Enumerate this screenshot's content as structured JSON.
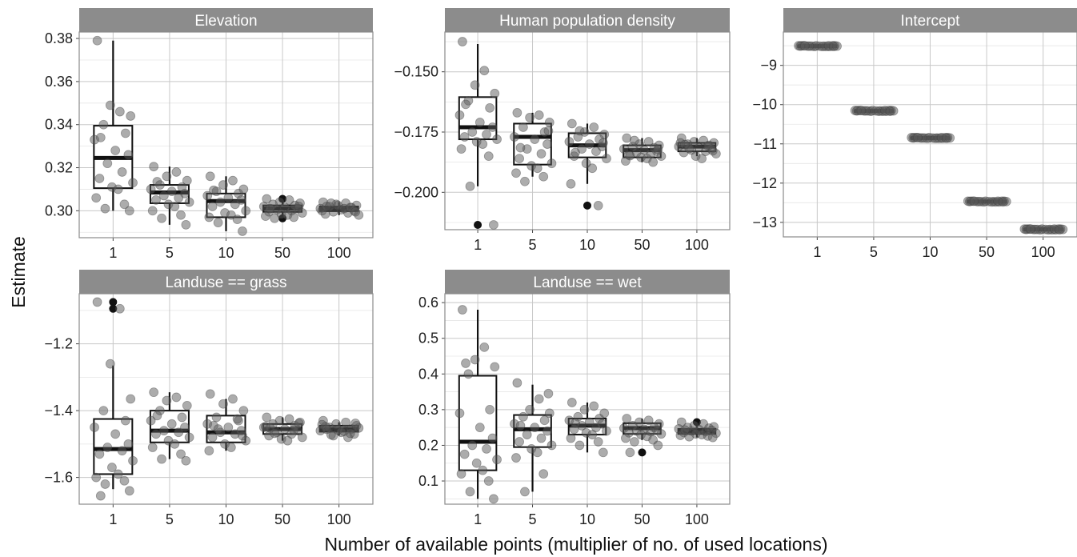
{
  "chart_data": {
    "type": "boxplot",
    "xlabel": "Number of available points (multiplier of no. of used locations)",
    "ylabel": "Estimate",
    "categories": [
      "1",
      "5",
      "10",
      "50",
      "100"
    ],
    "panels": [
      {
        "title": "Elevation",
        "ylim": [
          0.2875,
          0.383
        ],
        "yticks": [
          0.3,
          0.32,
          0.34,
          0.36,
          0.38
        ],
        "tick_labels": [
          "0.30",
          "0.32",
          "0.34",
          "0.36",
          "0.38"
        ],
        "boxes": [
          {
            "q1": 0.3105,
            "median": 0.3245,
            "q3": 0.3395,
            "low": 0.3,
            "high": 0.379,
            "outliers": []
          },
          {
            "q1": 0.3035,
            "median": 0.3085,
            "q3": 0.312,
            "low": 0.2935,
            "high": 0.3205,
            "outliers": []
          },
          {
            "q1": 0.297,
            "median": 0.3045,
            "q3": 0.308,
            "low": 0.2905,
            "high": 0.316,
            "outliers": []
          },
          {
            "q1": 0.2995,
            "median": 0.301,
            "q3": 0.3025,
            "low": 0.297,
            "high": 0.304,
            "outliers": [
              0.3055,
              0.2965
            ]
          },
          {
            "q1": 0.2998,
            "median": 0.301,
            "q3": 0.302,
            "low": 0.298,
            "high": 0.304,
            "outliers": []
          }
        ],
        "points": [
          [
            0.379,
            0.346,
            0.349,
            0.344,
            0.34,
            0.336,
            0.333,
            0.328,
            0.326,
            0.322,
            0.318,
            0.315,
            0.313,
            0.311,
            0.31,
            0.306,
            0.303,
            0.301,
            0.3,
            0.334
          ],
          [
            0.3205,
            0.318,
            0.316,
            0.314,
            0.312,
            0.311,
            0.31,
            0.309,
            0.308,
            0.307,
            0.306,
            0.305,
            0.304,
            0.303,
            0.302,
            0.3,
            0.298,
            0.2965,
            0.2935,
            0.3135
          ],
          [
            0.316,
            0.314,
            0.312,
            0.31,
            0.309,
            0.308,
            0.307,
            0.306,
            0.305,
            0.304,
            0.303,
            0.302,
            0.3,
            0.299,
            0.298,
            0.297,
            0.296,
            0.2945,
            0.2905,
            0.3095
          ],
          [
            0.3055,
            0.305,
            0.304,
            0.3035,
            0.303,
            0.3025,
            0.302,
            0.3015,
            0.301,
            0.3005,
            0.3,
            0.2995,
            0.299,
            0.2985,
            0.298,
            0.2975,
            0.297,
            0.2965,
            0.302,
            0.301
          ],
          [
            0.304,
            0.3035,
            0.303,
            0.3025,
            0.302,
            0.3015,
            0.301,
            0.3005,
            0.3,
            0.2995,
            0.299,
            0.2985,
            0.298,
            0.3025,
            0.301,
            0.3,
            0.3015,
            0.3035,
            0.2995,
            0.302
          ]
        ]
      },
      {
        "title": "Human population density",
        "ylim": [
          -0.2155,
          -0.1335
        ],
        "yticks": [
          -0.2,
          -0.175,
          -0.15
        ],
        "tick_labels": [
          "−0.200",
          "−0.175",
          "−0.150"
        ],
        "boxes": [
          {
            "q1": -0.178,
            "median": -0.173,
            "q3": -0.1605,
            "low": -0.1975,
            "high": -0.1385,
            "outliers": [
              -0.2135
            ]
          },
          {
            "q1": -0.1885,
            "median": -0.177,
            "q3": -0.1715,
            "low": -0.1935,
            "high": -0.167,
            "outliers": []
          },
          {
            "q1": -0.1855,
            "median": -0.1805,
            "q3": -0.1755,
            "low": -0.1965,
            "high": -0.1715,
            "outliers": [
              -0.2055
            ]
          },
          {
            "q1": -0.1855,
            "median": -0.1825,
            "q3": -0.1805,
            "low": -0.1875,
            "high": -0.1775,
            "outliers": []
          },
          {
            "q1": -0.183,
            "median": -0.181,
            "q3": -0.1795,
            "low": -0.185,
            "high": -0.1775,
            "outliers": []
          }
        ],
        "points": [
          [
            -0.1375,
            -0.1495,
            -0.1555,
            -0.159,
            -0.162,
            -0.165,
            -0.168,
            -0.171,
            -0.173,
            -0.175,
            -0.176,
            -0.177,
            -0.178,
            -0.179,
            -0.18,
            -0.182,
            -0.185,
            -0.1975,
            -0.2135,
            -0.1635
          ],
          [
            -0.167,
            -0.168,
            -0.169,
            -0.171,
            -0.173,
            -0.175,
            -0.177,
            -0.178,
            -0.18,
            -0.182,
            -0.184,
            -0.186,
            -0.188,
            -0.189,
            -0.19,
            -0.192,
            -0.1935,
            -0.1955,
            -0.1745,
            -0.1815
          ],
          [
            -0.1715,
            -0.173,
            -0.175,
            -0.176,
            -0.177,
            -0.178,
            -0.179,
            -0.18,
            -0.181,
            -0.182,
            -0.183,
            -0.185,
            -0.186,
            -0.188,
            -0.19,
            -0.1965,
            -0.2055,
            -0.1745,
            -0.1795,
            -0.1835
          ],
          [
            -0.1775,
            -0.179,
            -0.18,
            -0.1805,
            -0.181,
            -0.1815,
            -0.182,
            -0.1825,
            -0.183,
            -0.1835,
            -0.184,
            -0.1845,
            -0.185,
            -0.1855,
            -0.186,
            -0.187,
            -0.1875,
            -0.1785,
            -0.1822,
            -0.1848
          ],
          [
            -0.1775,
            -0.1785,
            -0.179,
            -0.1795,
            -0.18,
            -0.1805,
            -0.181,
            -0.1815,
            -0.182,
            -0.1825,
            -0.183,
            -0.1835,
            -0.184,
            -0.185,
            -0.186,
            -0.1795,
            -0.1808,
            -0.1818,
            -0.1828,
            -0.1802
          ]
        ]
      },
      {
        "title": "Intercept",
        "ylim": [
          -13.37,
          -8.15
        ],
        "yticks": [
          -13,
          -12,
          -11,
          -10,
          -9
        ],
        "tick_labels": [
          "−13",
          "−12",
          "−11",
          "−10",
          "−9"
        ],
        "boxes": [
          {
            "q1": -8.525,
            "median": -8.51,
            "q3": -8.495,
            "low": -8.54,
            "high": -8.48,
            "outliers": []
          },
          {
            "q1": -10.175,
            "median": -10.16,
            "q3": -10.145,
            "low": -10.19,
            "high": -10.13,
            "outliers": []
          },
          {
            "q1": -10.865,
            "median": -10.85,
            "q3": -10.835,
            "low": -10.88,
            "high": -10.82,
            "outliers": []
          },
          {
            "q1": -12.485,
            "median": -12.47,
            "q3": -12.455,
            "low": -12.5,
            "high": -12.44,
            "outliers": []
          },
          {
            "q1": -13.195,
            "median": -13.18,
            "q3": -13.165,
            "low": -13.21,
            "high": -13.15,
            "outliers": []
          }
        ],
        "points": [
          [
            -8.5,
            -8.51,
            -8.52,
            -8.5,
            -8.51,
            -8.52,
            -8.5,
            -8.51,
            -8.5,
            -8.51,
            -8.52,
            -8.5,
            -8.51,
            -8.5,
            -8.52,
            -8.51,
            -8.5,
            -8.51,
            -8.52,
            -8.5
          ],
          [
            -10.15,
            -10.16,
            -10.17,
            -10.15,
            -10.16,
            -10.17,
            -10.15,
            -10.16,
            -10.15,
            -10.16,
            -10.17,
            -10.15,
            -10.16,
            -10.15,
            -10.17,
            -10.16,
            -10.15,
            -10.16,
            -10.17,
            -10.15
          ],
          [
            -10.84,
            -10.85,
            -10.86,
            -10.84,
            -10.85,
            -10.86,
            -10.84,
            -10.85,
            -10.84,
            -10.85,
            -10.86,
            -10.84,
            -10.85,
            -10.84,
            -10.86,
            -10.85,
            -10.84,
            -10.85,
            -10.86,
            -10.84
          ],
          [
            -12.46,
            -12.47,
            -12.48,
            -12.46,
            -12.47,
            -12.48,
            -12.46,
            -12.47,
            -12.46,
            -12.47,
            -12.48,
            -12.46,
            -12.47,
            -12.46,
            -12.48,
            -12.47,
            -12.46,
            -12.47,
            -12.48,
            -12.46
          ],
          [
            -13.17,
            -13.18,
            -13.19,
            -13.17,
            -13.18,
            -13.19,
            -13.17,
            -13.18,
            -13.17,
            -13.18,
            -13.19,
            -13.17,
            -13.18,
            -13.17,
            -13.19,
            -13.18,
            -13.17,
            -13.18,
            -13.19,
            -13.17
          ]
        ]
      },
      {
        "title": "Landuse == grass",
        "ylim": [
          -1.68,
          -1.05
        ],
        "yticks": [
          -1.6,
          -1.4,
          -1.2
        ],
        "tick_labels": [
          "−1.6",
          "−1.4",
          "−1.2"
        ],
        "boxes": [
          {
            "q1": -1.59,
            "median": -1.515,
            "q3": -1.425,
            "low": -1.635,
            "high": -1.265,
            "outliers": [
              -1.075,
              -1.095
            ]
          },
          {
            "q1": -1.495,
            "median": -1.46,
            "q3": -1.4,
            "low": -1.545,
            "high": -1.345,
            "outliers": []
          },
          {
            "q1": -1.495,
            "median": -1.465,
            "q3": -1.415,
            "low": -1.52,
            "high": -1.365,
            "outliers": []
          },
          {
            "q1": -1.47,
            "median": -1.455,
            "q3": -1.44,
            "low": -1.49,
            "high": -1.42,
            "outliers": []
          },
          {
            "q1": -1.463,
            "median": -1.455,
            "q3": -1.445,
            "low": -1.475,
            "high": -1.435,
            "outliers": []
          }
        ],
        "points": [
          [
            -1.075,
            -1.095,
            -1.26,
            -1.365,
            -1.4,
            -1.43,
            -1.45,
            -1.47,
            -1.5,
            -1.51,
            -1.52,
            -1.53,
            -1.55,
            -1.57,
            -1.59,
            -1.6,
            -1.61,
            -1.62,
            -1.64,
            -1.655
          ],
          [
            -1.345,
            -1.36,
            -1.37,
            -1.385,
            -1.4,
            -1.42,
            -1.43,
            -1.44,
            -1.45,
            -1.46,
            -1.465,
            -1.47,
            -1.48,
            -1.49,
            -1.5,
            -1.51,
            -1.53,
            -1.545,
            -1.55,
            -1.415
          ],
          [
            -1.35,
            -1.365,
            -1.38,
            -1.4,
            -1.42,
            -1.43,
            -1.44,
            -1.45,
            -1.46,
            -1.465,
            -1.47,
            -1.48,
            -1.49,
            -1.5,
            -1.51,
            -1.52,
            -1.425,
            -1.455,
            -1.475,
            -1.445
          ],
          [
            -1.42,
            -1.425,
            -1.43,
            -1.435,
            -1.44,
            -1.445,
            -1.45,
            -1.455,
            -1.46,
            -1.465,
            -1.47,
            -1.475,
            -1.48,
            -1.485,
            -1.49,
            -1.448,
            -1.458,
            -1.468,
            -1.438,
            -1.452
          ],
          [
            -1.43,
            -1.435,
            -1.44,
            -1.445,
            -1.45,
            -1.455,
            -1.46,
            -1.465,
            -1.47,
            -1.475,
            -1.48,
            -1.448,
            -1.452,
            -1.458,
            -1.462,
            -1.442,
            -1.468,
            -1.472,
            -1.438,
            -1.456
          ]
        ]
      },
      {
        "title": "Landuse == wet",
        "ylim": [
          0.035,
          0.625
        ],
        "yticks": [
          0.1,
          0.2,
          0.3,
          0.4,
          0.5,
          0.6
        ],
        "tick_labels": [
          "0.1",
          "0.2",
          "0.3",
          "0.4",
          "0.5",
          "0.6"
        ],
        "boxes": [
          {
            "q1": 0.13,
            "median": 0.21,
            "q3": 0.395,
            "low": 0.05,
            "high": 0.58,
            "outliers": []
          },
          {
            "q1": 0.195,
            "median": 0.245,
            "q3": 0.285,
            "low": 0.07,
            "high": 0.37,
            "outliers": []
          },
          {
            "q1": 0.23,
            "median": 0.255,
            "q3": 0.275,
            "low": 0.18,
            "high": 0.32,
            "outliers": []
          },
          {
            "q1": 0.232,
            "median": 0.248,
            "q3": 0.262,
            "low": 0.215,
            "high": 0.275,
            "outliers": [
              0.18
            ]
          },
          {
            "q1": 0.232,
            "median": 0.24,
            "q3": 0.246,
            "low": 0.222,
            "high": 0.255,
            "outliers": [
              0.265
            ]
          }
        ],
        "points": [
          [
            0.58,
            0.475,
            0.44,
            0.42,
            0.4,
            0.3,
            0.29,
            0.25,
            0.22,
            0.2,
            0.19,
            0.175,
            0.16,
            0.15,
            0.13,
            0.12,
            0.1,
            0.07,
            0.05,
            0.43
          ],
          [
            0.375,
            0.33,
            0.3,
            0.29,
            0.28,
            0.27,
            0.26,
            0.25,
            0.24,
            0.23,
            0.22,
            0.21,
            0.2,
            0.19,
            0.18,
            0.165,
            0.12,
            0.07,
            0.345,
            0.255
          ],
          [
            0.32,
            0.31,
            0.3,
            0.29,
            0.28,
            0.275,
            0.27,
            0.265,
            0.26,
            0.255,
            0.25,
            0.245,
            0.24,
            0.235,
            0.23,
            0.22,
            0.21,
            0.2,
            0.18,
            0.262
          ],
          [
            0.275,
            0.27,
            0.265,
            0.26,
            0.255,
            0.25,
            0.248,
            0.245,
            0.242,
            0.24,
            0.238,
            0.235,
            0.232,
            0.23,
            0.225,
            0.22,
            0.215,
            0.21,
            0.2,
            0.18
          ],
          [
            0.265,
            0.26,
            0.255,
            0.252,
            0.25,
            0.248,
            0.246,
            0.244,
            0.242,
            0.24,
            0.238,
            0.236,
            0.234,
            0.232,
            0.23,
            0.228,
            0.226,
            0.224,
            0.222,
            0.243
          ]
        ]
      }
    ]
  }
}
